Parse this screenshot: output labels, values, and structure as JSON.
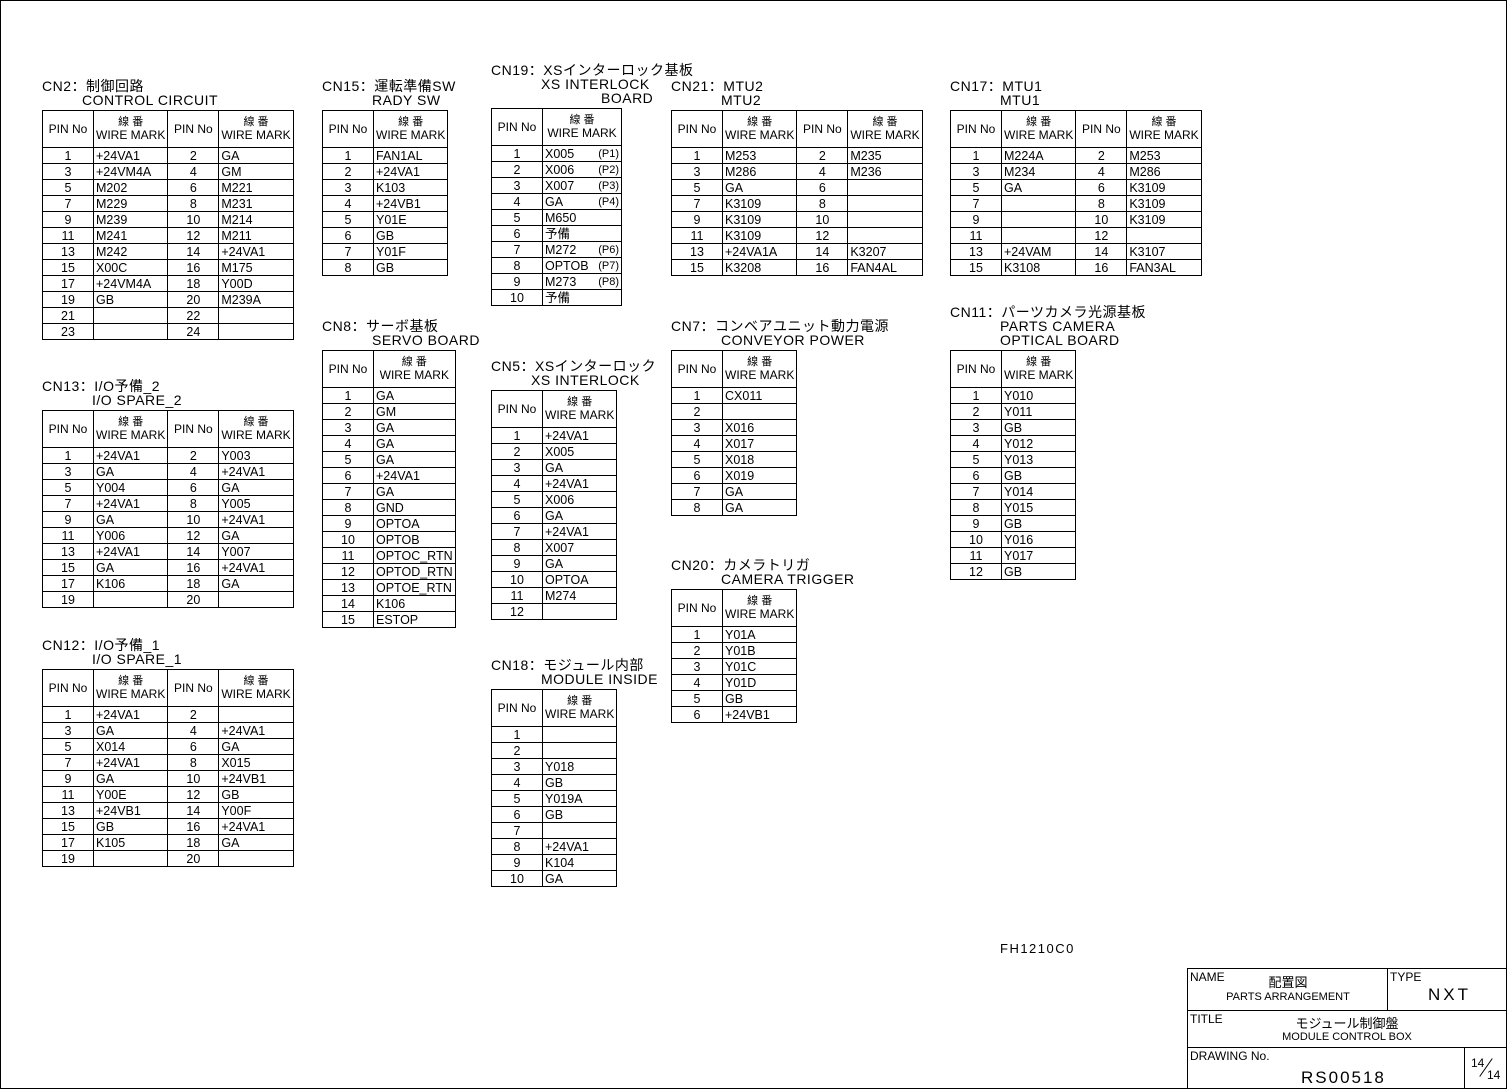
{
  "header": {
    "pin": "PIN No",
    "wire_jp": "線 番",
    "wire_en": "WIRE MARK"
  },
  "tables": [
    {
      "id": "cn2",
      "cols": 2,
      "title": [
        "CN2：制御回路",
        "CONTROL CIRCUIT"
      ],
      "rows": [
        [
          "1",
          "+24VA1",
          "2",
          "GA"
        ],
        [
          "3",
          "+24VM4A",
          "4",
          "GM"
        ],
        [
          "5",
          "M202",
          "6",
          "M221"
        ],
        [
          "7",
          "M229",
          "8",
          "M231"
        ],
        [
          "9",
          "M239",
          "10",
          "M214"
        ],
        [
          "11",
          "M241",
          "12",
          "M211"
        ],
        [
          "13",
          "M242",
          "14",
          "+24VA1"
        ],
        [
          "15",
          "X00C",
          "16",
          "M175"
        ],
        [
          "17",
          "+24VM4A",
          "18",
          "Y00D"
        ],
        [
          "19",
          "GB",
          "20",
          "M239A"
        ],
        [
          "21",
          "",
          "22",
          ""
        ],
        [
          "23",
          "",
          "24",
          ""
        ]
      ]
    },
    {
      "id": "cn13",
      "cols": 2,
      "title": [
        "CN13：I/O予備_2",
        "I/O SPARE_2"
      ],
      "rows": [
        [
          "1",
          "+24VA1",
          "2",
          "Y003"
        ],
        [
          "3",
          "GA",
          "4",
          "+24VA1"
        ],
        [
          "5",
          "Y004",
          "6",
          "GA"
        ],
        [
          "7",
          "+24VA1",
          "8",
          "Y005"
        ],
        [
          "9",
          "GA",
          "10",
          "+24VA1"
        ],
        [
          "11",
          "Y006",
          "12",
          "GA"
        ],
        [
          "13",
          "+24VA1",
          "14",
          "Y007"
        ],
        [
          "15",
          "GA",
          "16",
          "+24VA1"
        ],
        [
          "17",
          "K106",
          "18",
          "GA"
        ],
        [
          "19",
          "",
          "20",
          ""
        ]
      ]
    },
    {
      "id": "cn12",
      "cols": 2,
      "title": [
        "CN12：I/O予備_1",
        "I/O SPARE_1"
      ],
      "rows": [
        [
          "1",
          "+24VA1",
          "2",
          ""
        ],
        [
          "3",
          "GA",
          "4",
          "+24VA1"
        ],
        [
          "5",
          "X014",
          "6",
          "GA"
        ],
        [
          "7",
          "+24VA1",
          "8",
          "X015"
        ],
        [
          "9",
          "GA",
          "10",
          "+24VB1"
        ],
        [
          "11",
          "Y00E",
          "12",
          "GB"
        ],
        [
          "13",
          "+24VB1",
          "14",
          "Y00F"
        ],
        [
          "15",
          "GB",
          "16",
          "+24VA1"
        ],
        [
          "17",
          "K105",
          "18",
          "GA"
        ],
        [
          "19",
          "",
          "20",
          ""
        ]
      ]
    },
    {
      "id": "cn15",
      "cols": 1,
      "title": [
        "CN15：運転準備SW",
        "RADY SW"
      ],
      "rows": [
        [
          "1",
          "FAN1AL"
        ],
        [
          "2",
          "+24VA1"
        ],
        [
          "3",
          "K103"
        ],
        [
          "4",
          "+24VB1"
        ],
        [
          "5",
          "Y01E"
        ],
        [
          "6",
          "GB"
        ],
        [
          "7",
          "Y01F"
        ],
        [
          "8",
          "GB"
        ]
      ]
    },
    {
      "id": "cn8",
      "cols": 1,
      "title": [
        "CN8：サーボ基板",
        "SERVO BOARD"
      ],
      "rows": [
        [
          "1",
          "GA"
        ],
        [
          "2",
          "GM"
        ],
        [
          "3",
          "GA"
        ],
        [
          "4",
          "GA"
        ],
        [
          "5",
          "GA"
        ],
        [
          "6",
          "+24VA1"
        ],
        [
          "7",
          "GA"
        ],
        [
          "8",
          "GND"
        ],
        [
          "9",
          "OPTOA"
        ],
        [
          "10",
          "OPTOB"
        ],
        [
          "11",
          "OPTOC_RTN"
        ],
        [
          "12",
          "OPTOD_RTN"
        ],
        [
          "13",
          "OPTOE_RTN"
        ],
        [
          "14",
          "K106"
        ],
        [
          "15",
          "ESTOP"
        ]
      ]
    },
    {
      "id": "cn19",
      "cols": 1,
      "title": [
        "CN19：XSインターロック基板",
        "XS INTERLOCK",
        "BOARD"
      ],
      "rows": [
        [
          "1",
          "X005",
          "(P1)"
        ],
        [
          "2",
          "X006",
          "(P2)"
        ],
        [
          "3",
          "X007",
          "(P3)"
        ],
        [
          "4",
          "GA",
          "(P4)"
        ],
        [
          "5",
          "M650",
          ""
        ],
        [
          "6",
          "予備",
          ""
        ],
        [
          "7",
          "M272",
          "(P6)"
        ],
        [
          "8",
          "OPTOB",
          "(P7)"
        ],
        [
          "9",
          "M273",
          "(P8)"
        ],
        [
          "10",
          "予備",
          ""
        ]
      ]
    },
    {
      "id": "cn5",
      "cols": 1,
      "title": [
        "CN5：XSインターロック",
        "XS INTERLOCK"
      ],
      "rows": [
        [
          "1",
          "+24VA1"
        ],
        [
          "2",
          "X005"
        ],
        [
          "3",
          "GA"
        ],
        [
          "4",
          "+24VA1"
        ],
        [
          "5",
          "X006"
        ],
        [
          "6",
          "GA"
        ],
        [
          "7",
          "+24VA1"
        ],
        [
          "8",
          "X007"
        ],
        [
          "9",
          "GA"
        ],
        [
          "10",
          "OPTOA"
        ],
        [
          "11",
          "M274"
        ],
        [
          "12",
          ""
        ]
      ]
    },
    {
      "id": "cn18",
      "cols": 1,
      "title": [
        "CN18：モジュール内部",
        "MODULE INSIDE"
      ],
      "rows": [
        [
          "1",
          ""
        ],
        [
          "2",
          ""
        ],
        [
          "3",
          "Y018"
        ],
        [
          "4",
          "GB"
        ],
        [
          "5",
          "Y019A"
        ],
        [
          "6",
          "GB"
        ],
        [
          "7",
          ""
        ],
        [
          "8",
          "+24VA1"
        ],
        [
          "9",
          "K104"
        ],
        [
          "10",
          "GA"
        ]
      ]
    },
    {
      "id": "cn21",
      "cols": 2,
      "title": [
        "CN21：MTU2",
        "MTU2"
      ],
      "rows": [
        [
          "1",
          "M253",
          "2",
          "M235"
        ],
        [
          "3",
          "M286",
          "4",
          "M236"
        ],
        [
          "5",
          "GA",
          "6",
          ""
        ],
        [
          "7",
          "K3109",
          "8",
          ""
        ],
        [
          "9",
          "K3109",
          "10",
          ""
        ],
        [
          "11",
          "K3109",
          "12",
          ""
        ],
        [
          "13",
          "+24VA1A",
          "14",
          "K3207"
        ],
        [
          "15",
          "K3208",
          "16",
          "FAN4AL"
        ]
      ]
    },
    {
      "id": "cn7",
      "cols": 1,
      "title": [
        "CN7：コンベアユニット動力電源",
        "CONVEYOR POWER"
      ],
      "rows": [
        [
          "1",
          "CX011"
        ],
        [
          "2",
          ""
        ],
        [
          "3",
          "X016"
        ],
        [
          "4",
          "X017"
        ],
        [
          "5",
          "X018"
        ],
        [
          "6",
          "X019"
        ],
        [
          "7",
          "GA"
        ],
        [
          "8",
          "GA"
        ]
      ]
    },
    {
      "id": "cn20",
      "cols": 1,
      "title": [
        "CN20：カメラトリガ",
        "CAMERA TRIGGER"
      ],
      "rows": [
        [
          "1",
          "Y01A"
        ],
        [
          "2",
          "Y01B"
        ],
        [
          "3",
          "Y01C"
        ],
        [
          "4",
          "Y01D"
        ],
        [
          "5",
          "GB"
        ],
        [
          "6",
          "+24VB1"
        ]
      ]
    },
    {
      "id": "cn17",
      "cols": 2,
      "title": [
        "CN17：MTU1",
        "MTU1"
      ],
      "rows": [
        [
          "1",
          "M224A",
          "2",
          "M253"
        ],
        [
          "3",
          "M234",
          "4",
          "M286"
        ],
        [
          "5",
          "GA",
          "6",
          "K3109"
        ],
        [
          "7",
          "",
          "8",
          "K3109"
        ],
        [
          "9",
          "",
          "10",
          "K3109"
        ],
        [
          "11",
          "",
          "12",
          ""
        ],
        [
          "13",
          "+24VAM",
          "14",
          "K3107"
        ],
        [
          "15",
          "K3108",
          "16",
          "FAN3AL"
        ]
      ]
    },
    {
      "id": "cn11",
      "cols": 1,
      "title": [
        "CN11：パーツカメラ光源基板",
        "PARTS CAMERA",
        "OPTICAL BOARD"
      ],
      "rows": [
        [
          "1",
          "Y010"
        ],
        [
          "2",
          "Y011"
        ],
        [
          "3",
          "GB"
        ],
        [
          "4",
          "Y012"
        ],
        [
          "5",
          "Y013"
        ],
        [
          "6",
          "GB"
        ],
        [
          "7",
          "Y014"
        ],
        [
          "8",
          "Y015"
        ],
        [
          "9",
          "GB"
        ],
        [
          "10",
          "Y016"
        ],
        [
          "11",
          "Y017"
        ],
        [
          "12",
          "GB"
        ]
      ]
    }
  ],
  "drawing_code": "FH1210C0",
  "title_block": {
    "name_label": "NAME",
    "name_jp": "配置図",
    "name_en": "PARTS ARRANGEMENT",
    "type_label": "TYPE",
    "type_value": "NXT",
    "title_label": "TITLE",
    "title_jp": "モジュール制御盤",
    "title_en": "MODULE CONTROL BOX",
    "drawing_no_label": "DRAWING No.",
    "drawing_no": "RS00518",
    "sheet": "14",
    "sheet_total": "14"
  }
}
